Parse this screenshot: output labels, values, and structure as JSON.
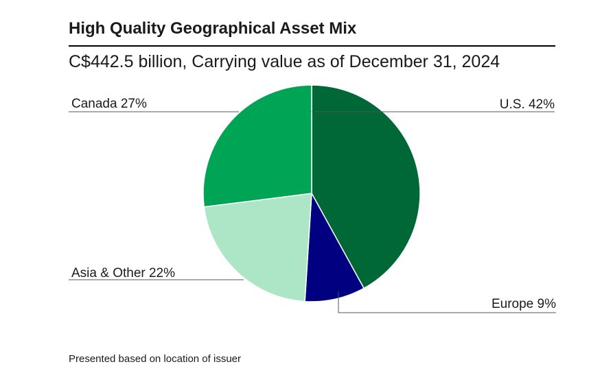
{
  "header": {
    "title": "High Quality Geographical Asset Mix",
    "subtitle": "C$442.5 billion, Carrying value as of December 31, 2024"
  },
  "footnote": "Presented based on location of issuer",
  "chart_data": {
    "type": "pie",
    "title": "High Quality Geographical Asset Mix",
    "subtitle": "C$442.5 billion, Carrying value as of December 31, 2024",
    "total_label": "C$442.5 billion",
    "slices": [
      {
        "name": "U.S.",
        "value": 42,
        "label": "U.S.  42%",
        "color": "#006837"
      },
      {
        "name": "Europe",
        "value": 9,
        "label": "Europe 9%",
        "color": "#000080"
      },
      {
        "name": "Asia & Other",
        "value": 22,
        "label": "Asia & Other 22%",
        "color": "#ace6c6"
      },
      {
        "name": "Canada",
        "value": 27,
        "label": "Canada 27%",
        "color": "#00a455"
      }
    ]
  }
}
